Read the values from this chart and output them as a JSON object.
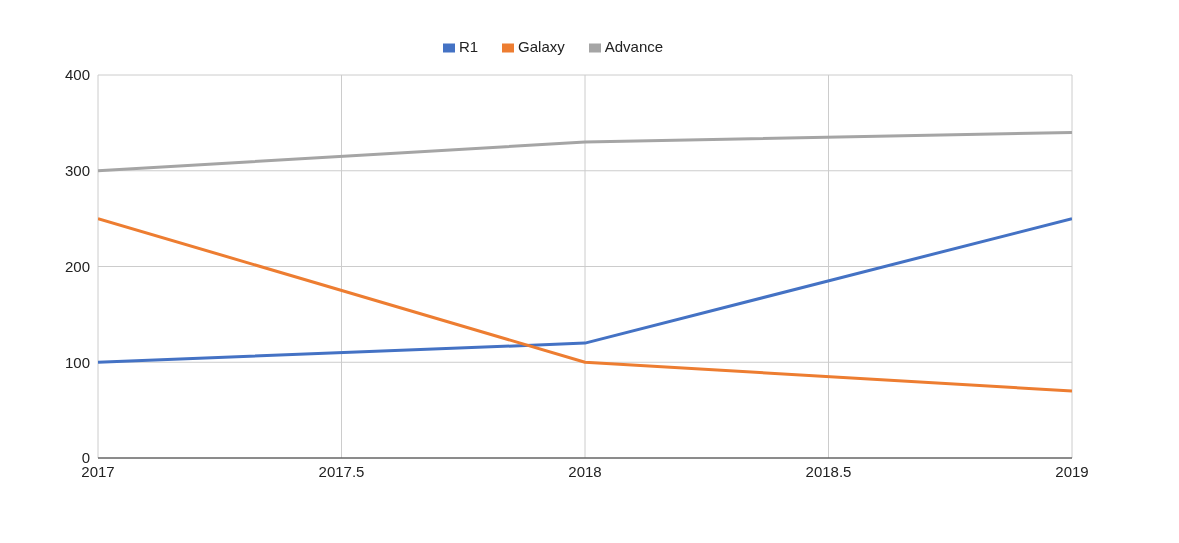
{
  "chart_data": {
    "type": "line",
    "x": [
      2017,
      2018,
      2019
    ],
    "series": [
      {
        "name": "R1",
        "color": "#4472c4",
        "values": [
          100,
          120,
          250
        ]
      },
      {
        "name": "Galaxy",
        "color": "#ed7d31",
        "values": [
          250,
          100,
          70
        ]
      },
      {
        "name": "Advance",
        "color": "#a5a5a5",
        "values": [
          300,
          330,
          340
        ]
      }
    ],
    "xlim": [
      2017,
      2019
    ],
    "xticks": [
      2017,
      2017.5,
      2018,
      2018.5,
      2019
    ],
    "ylim": [
      0,
      400
    ],
    "yticks": [
      0,
      100,
      200,
      300,
      400
    ],
    "grid": true,
    "legend": "top",
    "marker": "none",
    "line_style": "solid"
  }
}
